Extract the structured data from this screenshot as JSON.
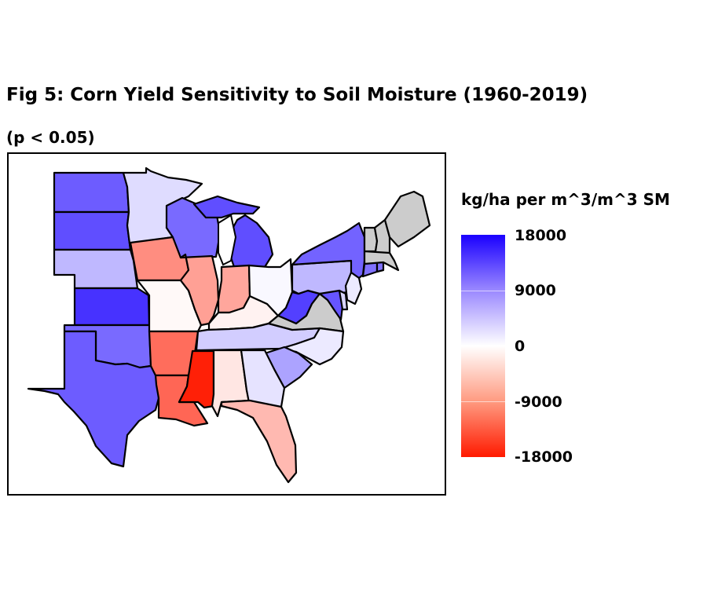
{
  "title": "Fig 5: Corn Yield Sensitivity to Soil Moisture (1960-2019)",
  "subtitle": "(p < 0.05)",
  "legend": {
    "title": "kg/ha per m^3/m^3 SM",
    "ticks": [
      "18000",
      "9000",
      "0",
      "-9000",
      "-18000"
    ],
    "max": 18000,
    "min": -18000
  },
  "colors": {
    "no_data": "#cccccc",
    "positive_max": "#1a00ff",
    "negative_max": "#ff1a00"
  },
  "chart_data": {
    "type": "choropleth",
    "states": [
      {
        "name": "North Dakota",
        "value": 11500
      },
      {
        "name": "South Dakota",
        "value": 12500
      },
      {
        "name": "Nebraska",
        "value": 5000
      },
      {
        "name": "Kansas",
        "value": 14500
      },
      {
        "name": "Oklahoma",
        "value": 10500
      },
      {
        "name": "Texas",
        "value": 11500
      },
      {
        "name": "Minnesota",
        "value": 2500
      },
      {
        "name": "Iowa",
        "value": -9000
      },
      {
        "name": "Missouri",
        "value": -500
      },
      {
        "name": "Arkansas",
        "value": -11500
      },
      {
        "name": "Louisiana",
        "value": -12000
      },
      {
        "name": "Wisconsin",
        "value": 10500
      },
      {
        "name": "Illinois",
        "value": -7500
      },
      {
        "name": "Mississippi",
        "value": -17500
      },
      {
        "name": "Michigan",
        "value": 12500
      },
      {
        "name": "Indiana",
        "value": -7000
      },
      {
        "name": "Kentucky",
        "value": -1000
      },
      {
        "name": "Tennessee",
        "value": 3500
      },
      {
        "name": "Alabama",
        "value": -2000
      },
      {
        "name": "Ohio",
        "value": 500
      },
      {
        "name": "West Virginia",
        "value": 13500
      },
      {
        "name": "Virginia",
        "value": null
      },
      {
        "name": "North Carolina",
        "value": 1500
      },
      {
        "name": "South Carolina",
        "value": 6500
      },
      {
        "name": "Georgia",
        "value": 2000
      },
      {
        "name": "Florida",
        "value": -5500
      },
      {
        "name": "Pennsylvania",
        "value": 5000
      },
      {
        "name": "New York",
        "value": 11000
      },
      {
        "name": "Maryland",
        "value": 12000
      },
      {
        "name": "Delaware",
        "value": 3000
      },
      {
        "name": "New Jersey",
        "value": 1500
      },
      {
        "name": "Connecticut",
        "value": 10000
      },
      {
        "name": "Rhode Island",
        "value": 10000
      },
      {
        "name": "Vermont",
        "value": null
      },
      {
        "name": "New Hampshire",
        "value": null
      },
      {
        "name": "Massachusetts",
        "value": null
      },
      {
        "name": "Maine",
        "value": null
      }
    ]
  }
}
